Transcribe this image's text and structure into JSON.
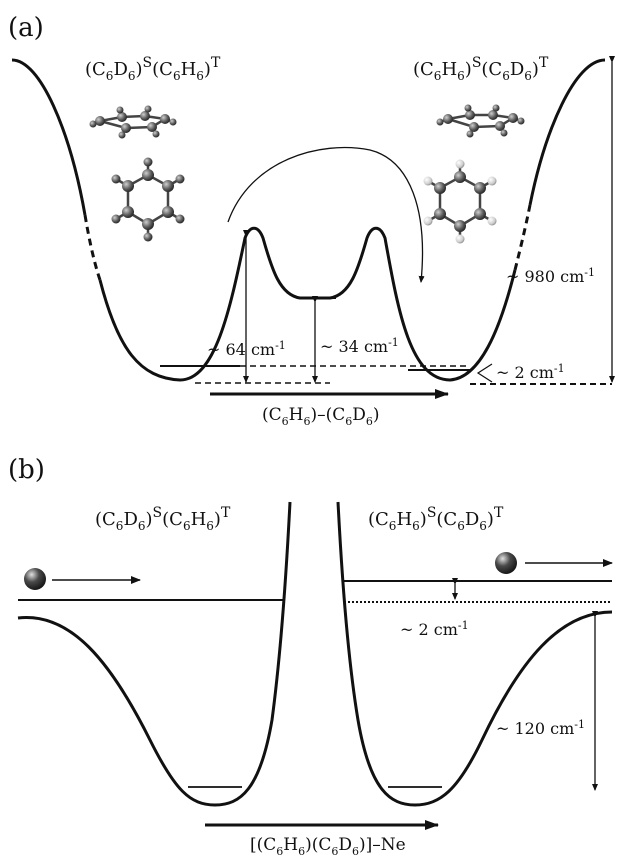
{
  "panel_a": {
    "label": "(a)",
    "left_state": {
      "main": "(C",
      "s1": "6",
      "m2": "D",
      "s2": "6",
      "m3": ")",
      "sup1": "S",
      "m4": "(C",
      "s3": "6",
      "m5": "H",
      "s4": "6",
      "m6": ")",
      "sup2": "T"
    },
    "right_state": {
      "main": "(C",
      "s1": "6",
      "m2": "H",
      "s2": "6",
      "m3": ")",
      "sup1": "S",
      "m4": "(C",
      "s3": "6",
      "m5": "D",
      "s4": "6",
      "m6": ")",
      "sup2": "T"
    },
    "barrier_total": {
      "text": "~ 980 cm",
      "sup": "-1"
    },
    "barrier_inner": {
      "text": "~ 64 cm",
      "sup": "-1"
    },
    "barrier_mid": {
      "text": "~ 34 cm",
      "sup": "-1"
    },
    "splitting": {
      "text": "~ 2 cm",
      "sup": "-1"
    },
    "coordinate": {
      "m1": "(C",
      "s1": "6",
      "m2": "H",
      "s2": "6",
      "m3": ")–(C",
      "s3": "6",
      "m4": "D",
      "s4": "6",
      "m5": ")"
    }
  },
  "panel_b": {
    "label": "(b)",
    "left_state": {
      "main": "(C",
      "s1": "6",
      "m2": "D",
      "s2": "6",
      "m3": ")",
      "sup1": "S",
      "m4": "(C",
      "s3": "6",
      "m5": "H",
      "s4": "6",
      "m6": ")",
      "sup2": "T"
    },
    "right_state": {
      "main": "(C",
      "s1": "6",
      "m2": "H",
      "s2": "6",
      "m3": ")",
      "sup1": "S",
      "m4": "(C",
      "s3": "6",
      "m5": "D",
      "s4": "6",
      "m6": ")",
      "sup2": "T"
    },
    "splitting": {
      "text": "~ 2 cm",
      "sup": "-1"
    },
    "barrier": {
      "text": "~ 120 cm",
      "sup": "-1"
    },
    "coordinate": {
      "m1": "[(C",
      "s1": "6",
      "m2": "H",
      "s2": "6",
      "m3": ")(C",
      "s3": "6",
      "m4": "D",
      "s4": "6",
      "m5": ")]–Ne"
    }
  },
  "colors": {
    "ink": "#111111",
    "atom_c": "#555555",
    "atom_h": "#dddddd"
  }
}
